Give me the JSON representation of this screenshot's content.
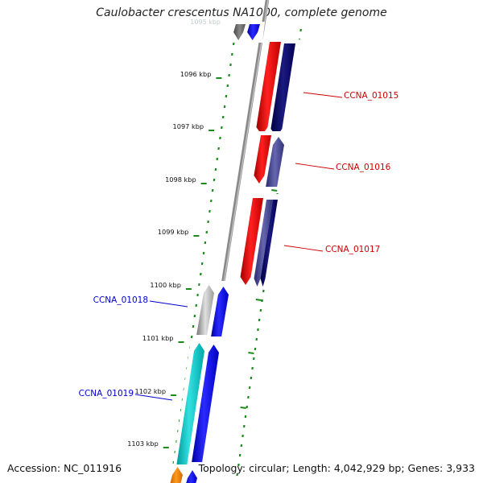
{
  "title": "Caulobacter crescentus NA1000, complete genome",
  "footer": {
    "accession": "Accession: NC_011916",
    "summary": "Topology: circular; Length: 4,042,929 bp; Genes: 3,933"
  },
  "ticks": [
    {
      "label": "1096 kbp"
    },
    {
      "label": "1097 kbp"
    },
    {
      "label": "1098 kbp"
    },
    {
      "label": "1099 kbp"
    },
    {
      "label": "1100 kbp"
    },
    {
      "label": "1101 kbp"
    },
    {
      "label": "1102 kbp"
    },
    {
      "label": "1103 kbp"
    }
  ],
  "genes": [
    {
      "label": "CCNA_01015",
      "strand": "forward",
      "color": "#cc0000"
    },
    {
      "label": "CCNA_01016",
      "strand": "forward",
      "color": "#cc0000"
    },
    {
      "label": "CCNA_01017",
      "strand": "forward",
      "color": "#cc0000"
    },
    {
      "label": "CCNA_01018",
      "strand": "reverse",
      "color": "#0000cc"
    },
    {
      "label": "CCNA_01019",
      "strand": "reverse",
      "color": "#0000cc"
    }
  ]
}
